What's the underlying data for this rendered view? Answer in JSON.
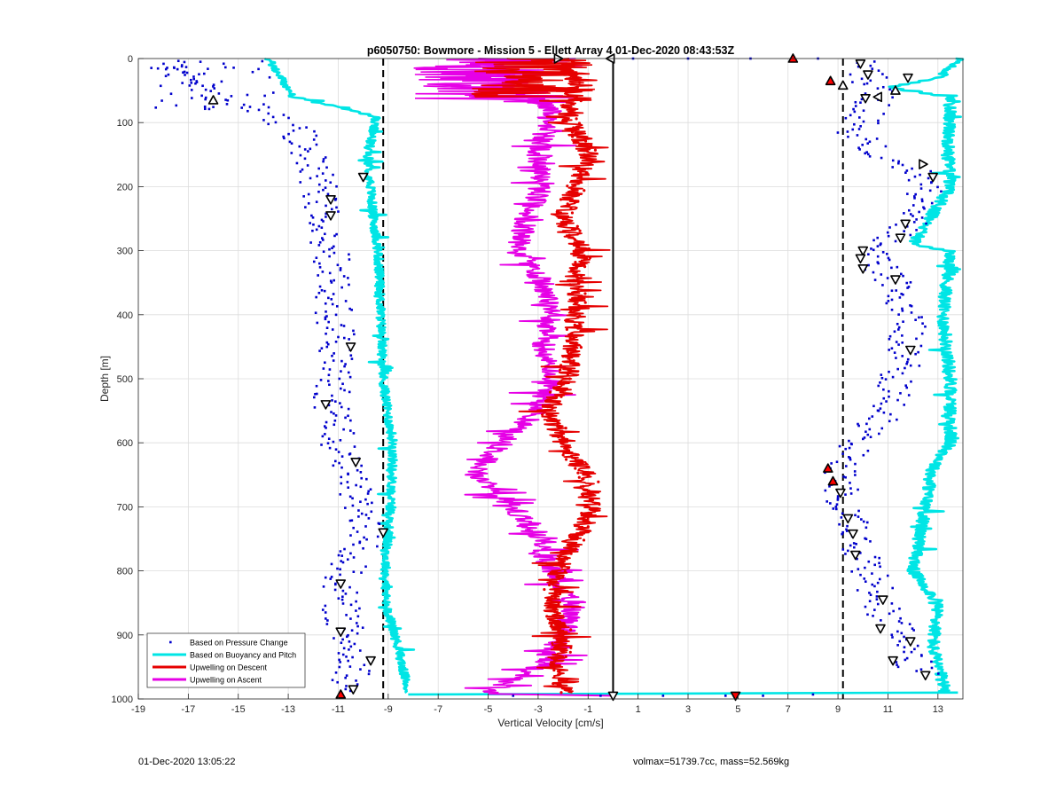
{
  "chart_data": {
    "type": "scatter",
    "title": "p6050750: Bowmore - Mission 5 - Ellett Array 4 01-Dec-2020 08:43:53Z",
    "xlabel": "Vertical Velocity [cm/s]",
    "ylabel": "Depth [m]",
    "xlim": [
      -19,
      14
    ],
    "ylim": [
      0,
      1000
    ],
    "y_reversed": true,
    "xticks": [
      -19,
      -17,
      -15,
      -13,
      -11,
      -9,
      -7,
      -5,
      -3,
      -1,
      1,
      3,
      5,
      7,
      9,
      11,
      13
    ],
    "yticks": [
      0,
      100,
      200,
      300,
      400,
      500,
      600,
      700,
      800,
      900,
      1000
    ],
    "grid": true,
    "legend_location": "bottom-left",
    "reference_lines": [
      {
        "x": -9.2,
        "style": "dashed",
        "color": "#000000"
      },
      {
        "x": 9.2,
        "style": "dashed",
        "color": "#000000"
      },
      {
        "x": 0,
        "style": "solid",
        "color": "#000000"
      }
    ],
    "series": [
      {
        "name": "Based on Pressure Change",
        "kind": "points",
        "color": "#0000cc",
        "descent_profile": [
          [
            -18,
            5
          ],
          [
            -16,
            60
          ],
          [
            -13.5,
            90
          ],
          [
            -12.5,
            120
          ],
          [
            -11.7,
            200
          ],
          [
            -11.5,
            250
          ],
          [
            -11.3,
            300
          ],
          [
            -11.2,
            400
          ],
          [
            -11.0,
            450
          ],
          [
            -11.2,
            500
          ],
          [
            -11.3,
            540
          ],
          [
            -11.0,
            600
          ],
          [
            -10.4,
            650
          ],
          [
            -10.2,
            700
          ],
          [
            -9.8,
            740
          ],
          [
            -10.5,
            780
          ],
          [
            -11.0,
            830
          ],
          [
            -10.7,
            900
          ],
          [
            -10.2,
            950
          ],
          [
            -10.8,
            990
          ]
        ],
        "ascent_profile": [
          [
            10,
            5
          ],
          [
            10.5,
            60
          ],
          [
            9.7,
            120
          ],
          [
            11.3,
            160
          ],
          [
            12.5,
            190
          ],
          [
            12.2,
            250
          ],
          [
            10.3,
            310
          ],
          [
            11.2,
            350
          ],
          [
            11.8,
            400
          ],
          [
            11.6,
            480
          ],
          [
            10.7,
            560
          ],
          [
            9.0,
            640
          ],
          [
            9.2,
            680
          ],
          [
            9.6,
            740
          ],
          [
            10.2,
            800
          ],
          [
            10.8,
            860
          ],
          [
            11.6,
            910
          ],
          [
            12.3,
            960
          ]
        ],
        "surface_points": [
          [
            -0.5,
            995
          ],
          [
            2,
            995
          ],
          [
            4.5,
            995
          ],
          [
            6,
            995
          ],
          [
            8,
            993
          ],
          [
            -4,
            995
          ],
          [
            0.8,
            0
          ],
          [
            3,
            0
          ],
          [
            5.5,
            0
          ],
          [
            8.2,
            0
          ]
        ]
      },
      {
        "name": "Based on Buoyancy and Pitch",
        "kind": "line",
        "color": "#00e5e5",
        "descent_profile": [
          [
            -13.8,
            0
          ],
          [
            -12.8,
            60
          ],
          [
            -9.5,
            90
          ],
          [
            -9.8,
            150
          ],
          [
            -9.7,
            200
          ],
          [
            -9.6,
            250
          ],
          [
            -9.4,
            300
          ],
          [
            -9.3,
            400
          ],
          [
            -9.2,
            500
          ],
          [
            -9.0,
            560
          ],
          [
            -8.8,
            600
          ],
          [
            -8.9,
            700
          ],
          [
            -9.1,
            780
          ],
          [
            -9.1,
            850
          ],
          [
            -8.6,
            920
          ],
          [
            -8.2,
            990
          ]
        ],
        "ascent_profile": [
          [
            13.8,
            0
          ],
          [
            13.0,
            30
          ],
          [
            11.0,
            45
          ],
          [
            13.5,
            60
          ],
          [
            13.4,
            150
          ],
          [
            13.5,
            200
          ],
          [
            12.0,
            290
          ],
          [
            13.5,
            300
          ],
          [
            13.2,
            400
          ],
          [
            13.5,
            500
          ],
          [
            13.5,
            600
          ],
          [
            12.8,
            640
          ],
          [
            12.5,
            700
          ],
          [
            12.0,
            800
          ],
          [
            13.0,
            850
          ],
          [
            12.8,
            920
          ],
          [
            13.3,
            990
          ]
        ]
      },
      {
        "name": "Upwelling on Descent",
        "kind": "line",
        "color": "#e60000",
        "profile": [
          [
            -2,
            0
          ],
          [
            -1.5,
            40
          ],
          [
            -1.8,
            90
          ],
          [
            -1.0,
            150
          ],
          [
            -1.5,
            200
          ],
          [
            -2.0,
            250
          ],
          [
            -1.2,
            300
          ],
          [
            -1.5,
            350
          ],
          [
            -1.5,
            400
          ],
          [
            -1.6,
            450
          ],
          [
            -1.8,
            500
          ],
          [
            -2.6,
            550
          ],
          [
            -2.0,
            600
          ],
          [
            -1.0,
            650
          ],
          [
            -0.8,
            700
          ],
          [
            -1.5,
            750
          ],
          [
            -2.2,
            800
          ],
          [
            -2.5,
            850
          ],
          [
            -2.0,
            900
          ],
          [
            -2.2,
            950
          ],
          [
            -2.0,
            990
          ]
        ]
      },
      {
        "name": "Upwelling on Ascent",
        "kind": "line",
        "color": "#e600e6",
        "profile": [
          [
            -5,
            0
          ],
          [
            -4,
            40
          ],
          [
            -2.5,
            80
          ],
          [
            -3.0,
            150
          ],
          [
            -2.8,
            200
          ],
          [
            -3.5,
            250
          ],
          [
            -3.8,
            300
          ],
          [
            -2.8,
            350
          ],
          [
            -2.5,
            400
          ],
          [
            -2.8,
            450
          ],
          [
            -2.5,
            500
          ],
          [
            -3.0,
            550
          ],
          [
            -4.5,
            600
          ],
          [
            -5.5,
            650
          ],
          [
            -4.0,
            700
          ],
          [
            -3.0,
            750
          ],
          [
            -2.5,
            800
          ],
          [
            -1.5,
            850
          ],
          [
            -2.0,
            900
          ],
          [
            -3.0,
            950
          ],
          [
            -5.0,
            990
          ]
        ]
      }
    ],
    "markers": [
      {
        "x": 7.2,
        "y": 0,
        "shape": "triangle-up",
        "fill": "#ff0000"
      },
      {
        "x": 8.7,
        "y": 35,
        "shape": "triangle-up",
        "fill": "#ff0000"
      },
      {
        "x": 8.6,
        "y": 640,
        "shape": "triangle-up",
        "fill": "#ff0000"
      },
      {
        "x": 8.8,
        "y": 660,
        "shape": "triangle-up",
        "fill": "#ff0000"
      },
      {
        "x": 4.9,
        "y": 995,
        "shape": "triangle-down",
        "fill": "#ff0000"
      },
      {
        "x": -10.9,
        "y": 993,
        "shape": "triangle-up",
        "fill": "#ff0000"
      },
      {
        "x": -16,
        "y": 65,
        "shape": "triangle-up",
        "fill": "#ffffff"
      },
      {
        "x": -10,
        "y": 185,
        "shape": "triangle-down",
        "fill": "#ffffff"
      },
      {
        "x": -11.3,
        "y": 220,
        "shape": "triangle-down",
        "fill": "#ffffff"
      },
      {
        "x": -11.3,
        "y": 245,
        "shape": "triangle-down",
        "fill": "#ffffff"
      },
      {
        "x": -10.5,
        "y": 450,
        "shape": "triangle-down",
        "fill": "#ffffff"
      },
      {
        "x": -11.5,
        "y": 540,
        "shape": "triangle-down",
        "fill": "#ffffff"
      },
      {
        "x": -10.3,
        "y": 630,
        "shape": "triangle-down",
        "fill": "#ffffff"
      },
      {
        "x": -9.2,
        "y": 740,
        "shape": "triangle-down",
        "fill": "#ffffff"
      },
      {
        "x": -10.9,
        "y": 820,
        "shape": "triangle-down",
        "fill": "#ffffff"
      },
      {
        "x": -10.9,
        "y": 895,
        "shape": "triangle-down",
        "fill": "#ffffff"
      },
      {
        "x": -9.7,
        "y": 940,
        "shape": "triangle-down",
        "fill": "#ffffff"
      },
      {
        "x": -10.4,
        "y": 985,
        "shape": "triangle-down",
        "fill": "#ffffff"
      },
      {
        "x": -2.2,
        "y": 0,
        "shape": "triangle-right",
        "fill": "#ffffff"
      },
      {
        "x": -0.1,
        "y": 0,
        "shape": "triangle-left",
        "fill": "#ffffff"
      },
      {
        "x": 0,
        "y": 995,
        "shape": "triangle-down",
        "fill": "#ffffff"
      },
      {
        "x": 9.9,
        "y": 8,
        "shape": "triangle-down",
        "fill": "#ffffff"
      },
      {
        "x": 10.2,
        "y": 25,
        "shape": "triangle-down",
        "fill": "#ffffff"
      },
      {
        "x": 11.8,
        "y": 30,
        "shape": "triangle-down",
        "fill": "#ffffff"
      },
      {
        "x": 9.2,
        "y": 42,
        "shape": "triangle-up",
        "fill": "#ffffff"
      },
      {
        "x": 11.3,
        "y": 50,
        "shape": "triangle-up",
        "fill": "#ffffff"
      },
      {
        "x": 10.6,
        "y": 60,
        "shape": "triangle-left",
        "fill": "#ffffff"
      },
      {
        "x": 10.1,
        "y": 62,
        "shape": "triangle-down",
        "fill": "#ffffff"
      },
      {
        "x": 12.4,
        "y": 165,
        "shape": "triangle-right",
        "fill": "#ffffff"
      },
      {
        "x": 12.8,
        "y": 185,
        "shape": "triangle-down",
        "fill": "#ffffff"
      },
      {
        "x": 11.7,
        "y": 258,
        "shape": "triangle-down",
        "fill": "#ffffff"
      },
      {
        "x": 11.5,
        "y": 280,
        "shape": "triangle-down",
        "fill": "#ffffff"
      },
      {
        "x": 10.0,
        "y": 300,
        "shape": "triangle-down",
        "fill": "#ffffff"
      },
      {
        "x": 9.9,
        "y": 312,
        "shape": "triangle-down",
        "fill": "#ffffff"
      },
      {
        "x": 10.0,
        "y": 328,
        "shape": "triangle-down",
        "fill": "#ffffff"
      },
      {
        "x": 11.3,
        "y": 345,
        "shape": "triangle-down",
        "fill": "#ffffff"
      },
      {
        "x": 11.9,
        "y": 455,
        "shape": "triangle-down",
        "fill": "#ffffff"
      },
      {
        "x": 9.1,
        "y": 678,
        "shape": "triangle-down",
        "fill": "#ffffff"
      },
      {
        "x": 9.4,
        "y": 718,
        "shape": "triangle-down",
        "fill": "#ffffff"
      },
      {
        "x": 9.6,
        "y": 742,
        "shape": "triangle-down",
        "fill": "#ffffff"
      },
      {
        "x": 9.7,
        "y": 775,
        "shape": "triangle-down",
        "fill": "#ffffff"
      },
      {
        "x": 10.8,
        "y": 845,
        "shape": "triangle-down",
        "fill": "#ffffff"
      },
      {
        "x": 10.7,
        "y": 890,
        "shape": "triangle-down",
        "fill": "#ffffff"
      },
      {
        "x": 11.9,
        "y": 910,
        "shape": "triangle-down",
        "fill": "#ffffff"
      },
      {
        "x": 11.2,
        "y": 940,
        "shape": "triangle-down",
        "fill": "#ffffff"
      },
      {
        "x": 12.5,
        "y": 963,
        "shape": "triangle-down",
        "fill": "#ffffff"
      }
    ]
  },
  "footer": {
    "timestamp": "01-Dec-2020 13:05:22",
    "summary": "volmax=51739.7cc, mass=52.569kg"
  }
}
